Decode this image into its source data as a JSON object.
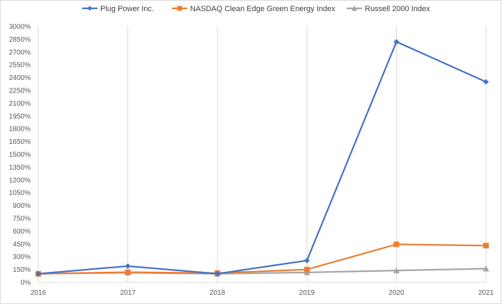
{
  "chart_data": {
    "type": "line",
    "title": "",
    "xlabel": "",
    "ylabel": "",
    "x": [
      "2016",
      "2017",
      "2018",
      "2019",
      "2020",
      "2021"
    ],
    "ylim": [
      0,
      3000
    ],
    "yticks": [
      0,
      150,
      300,
      450,
      600,
      750,
      900,
      1050,
      1200,
      1350,
      1500,
      1650,
      1800,
      1950,
      2100,
      2250,
      2400,
      2550,
      2700,
      2850,
      3000
    ],
    "ytick_labels": [
      "0%",
      "150%",
      "300%",
      "450%",
      "600%",
      "750%",
      "900%",
      "1050%",
      "1200%",
      "1350%",
      "1500%",
      "1650%",
      "1800%",
      "1950%",
      "2100%",
      "2250%",
      "2400%",
      "2550%",
      "2700%",
      "2850%",
      "3000%"
    ],
    "grid": "vertical",
    "legend": "top",
    "series": [
      {
        "name": "Plug Power Inc.",
        "values": [
          100,
          190,
          100,
          255,
          2820,
          2350
        ],
        "color": "#4472c4",
        "marker": "diamond"
      },
      {
        "name": "NASDAQ Clean Edge Green Energy Index",
        "values": [
          100,
          118,
          108,
          150,
          445,
          430
        ],
        "color": "#ed7d31",
        "marker": "square"
      },
      {
        "name": "Russell 2000 Index",
        "values": [
          100,
          112,
          100,
          115,
          138,
          160
        ],
        "color": "#a5a5a5",
        "marker": "triangle"
      }
    ]
  }
}
